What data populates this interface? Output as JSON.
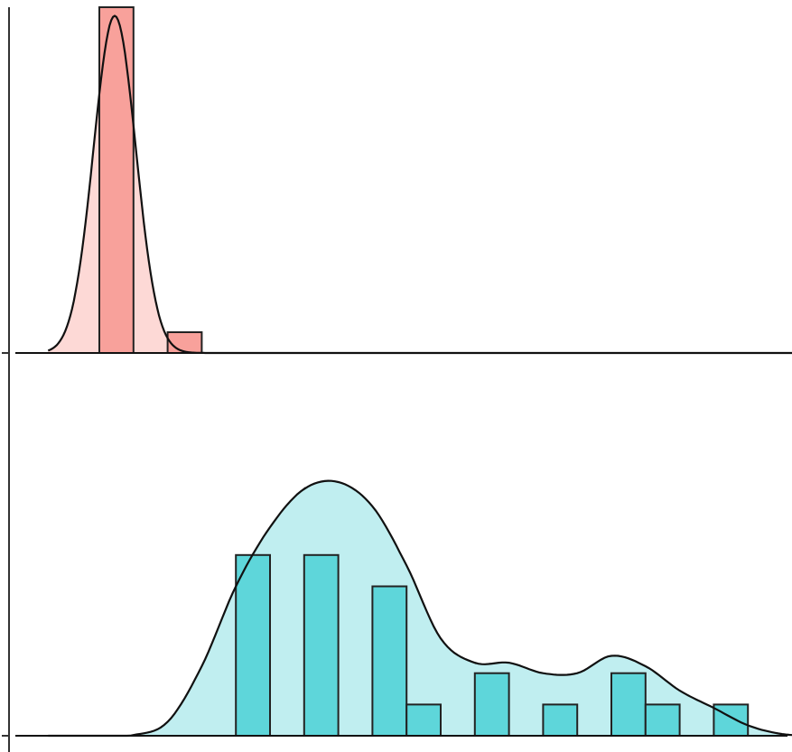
{
  "chart_data": [
    {
      "type": "histogram",
      "panel": "top",
      "color": "#F8766D",
      "bar_fill": "#F8A19B",
      "density_fill": "#FDD9D6",
      "bin_width": 1,
      "xlim": [
        -1,
        22
      ],
      "bins": [
        {
          "x0": 1,
          "x1": 2,
          "count": 20
        },
        {
          "x0": 2,
          "x1": 3,
          "count": 0
        },
        {
          "x0": 3,
          "x1": 4,
          "count": 1.2
        },
        {
          "x0": 4,
          "x1": 5,
          "count": 0
        }
      ],
      "bin_extent": [
        0,
        5
      ],
      "density_peak": 19.5,
      "density_mode": 1.45,
      "density_sd": 0.62,
      "ylim": [
        0,
        20
      ]
    },
    {
      "type": "histogram",
      "panel": "bottom",
      "color": "#00BFC4",
      "bar_fill": "#5ED6DA",
      "density_fill": "#C0EEF0",
      "bin_width": 1,
      "xlim": [
        -1,
        22
      ],
      "bins": [
        {
          "x0": 5,
          "x1": 6,
          "count": 5.2
        },
        {
          "x0": 6,
          "x1": 7,
          "count": 0
        },
        {
          "x0": 7,
          "x1": 8,
          "count": 5.2
        },
        {
          "x0": 8,
          "x1": 9,
          "count": 0
        },
        {
          "x0": 9,
          "x1": 10,
          "count": 4.3
        },
        {
          "x0": 10,
          "x1": 11,
          "count": 0.9
        },
        {
          "x0": 11,
          "x1": 12,
          "count": 0
        },
        {
          "x0": 12,
          "x1": 13,
          "count": 1.8
        },
        {
          "x0": 13,
          "x1": 14,
          "count": 0
        },
        {
          "x0": 14,
          "x1": 15,
          "count": 0.9
        },
        {
          "x0": 15,
          "x1": 16,
          "count": 0
        },
        {
          "x0": 16,
          "x1": 17,
          "count": 1.8
        },
        {
          "x0": 17,
          "x1": 18,
          "count": 0.9
        },
        {
          "x0": 18,
          "x1": 19,
          "count": 0
        },
        {
          "x0": 19,
          "x1": 20,
          "count": 0.9
        },
        {
          "x0": 20,
          "x1": 21,
          "count": 0
        }
      ],
      "bin_extent": [
        5,
        21
      ],
      "density_curve": [
        [
          -0.5,
          0
        ],
        [
          1,
          0
        ],
        [
          2,
          0.02
        ],
        [
          3,
          0.4
        ],
        [
          4,
          2.0
        ],
        [
          5,
          4.3
        ],
        [
          6,
          6.0
        ],
        [
          7,
          7.1
        ],
        [
          8,
          7.3
        ],
        [
          9,
          6.6
        ],
        [
          10,
          4.9
        ],
        [
          11,
          2.8
        ],
        [
          12,
          2.1
        ],
        [
          13,
          2.1
        ],
        [
          14,
          1.8
        ],
        [
          15,
          1.8
        ],
        [
          16,
          2.3
        ],
        [
          17,
          2.0
        ],
        [
          18,
          1.3
        ],
        [
          19,
          0.8
        ],
        [
          20,
          0.3
        ],
        [
          21,
          0.05
        ],
        [
          22,
          0
        ]
      ],
      "ylim": [
        0,
        10
      ]
    }
  ]
}
